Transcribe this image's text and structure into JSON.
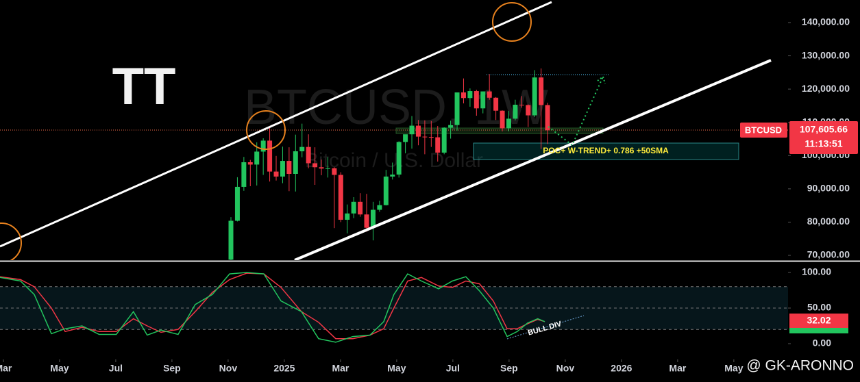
{
  "chart_data": [
    {
      "type": "candlestick",
      "logo": "TT",
      "watermark_title": "BTCUSD, 1W",
      "watermark_subtitle": "Bitcoin / U.S. Dollar",
      "symbol": "BTCUSD",
      "countdown": "11:13:51",
      "zone_label": "POC+ W-TREND+ 0.786 +50SMA",
      "credit": "@ GK-ARONNO",
      "last_price": {
        "value": 107605.66,
        "label": "107,605.66"
      },
      "up_color": "#22c55e",
      "down_color": "#f23645",
      "xlim": [
        1.88,
        29.93
      ],
      "xticks": [
        {
          "value": 2,
          "label": "Mar"
        },
        {
          "value": 4,
          "label": "May"
        },
        {
          "value": 6,
          "label": "Jul"
        },
        {
          "value": 8,
          "label": "Sep"
        },
        {
          "value": 10,
          "label": "Nov"
        },
        {
          "value": 12,
          "label": "2025"
        },
        {
          "value": 14,
          "label": "Mar"
        },
        {
          "value": 16,
          "label": "May"
        },
        {
          "value": 18,
          "label": "Jul"
        },
        {
          "value": 20,
          "label": "Sep"
        },
        {
          "value": 22,
          "label": "Nov"
        },
        {
          "value": 24,
          "label": "2026"
        },
        {
          "value": 26,
          "label": "Mar"
        },
        {
          "value": 28,
          "label": "May"
        }
      ],
      "ylim": [
        68560,
        146790
      ],
      "yticks": [
        {
          "value": 70000,
          "label": "70,000.00"
        },
        {
          "value": 80000,
          "label": "80,000.00"
        },
        {
          "value": 90000,
          "label": "90,000.00"
        },
        {
          "value": 100000,
          "label": "100,000.00"
        },
        {
          "value": 110000,
          "label": "110,000.00"
        },
        {
          "value": 120000,
          "label": "120,000.00"
        },
        {
          "value": 130000,
          "label": "130,000.00"
        },
        {
          "value": 140000,
          "label": "140,000.00"
        }
      ],
      "x": [
        10.1,
        10.33,
        10.56,
        10.79,
        11.02,
        11.25,
        11.48,
        11.71,
        11.94,
        12.17,
        12.4,
        12.63,
        12.86,
        13.09,
        13.32,
        13.55,
        13.78,
        14.01,
        14.24,
        14.47,
        14.7,
        14.93,
        15.16,
        15.39,
        15.62,
        15.85,
        16.08,
        16.31,
        16.54,
        16.77,
        17.0,
        17.23,
        17.46,
        17.69,
        17.92,
        18.15,
        18.38,
        18.61,
        18.84,
        19.07,
        19.3,
        19.53,
        19.76,
        19.99,
        20.22,
        20.45,
        20.68,
        20.91,
        21.14,
        21.37
      ],
      "open": [
        68700,
        80400,
        90600,
        98000,
        97300,
        101200,
        104500,
        95200,
        93700,
        98400,
        94500,
        101300,
        102600,
        97700,
        96500,
        96100,
        96200,
        94200,
        80700,
        82600,
        86100,
        82300,
        78300,
        83700,
        85100,
        93700,
        94300,
        104100,
        106400,
        109000,
        105700,
        105600,
        105500,
        100900,
        108400,
        109200,
        119000,
        117300,
        119400,
        114200,
        119300,
        117400,
        113500,
        108200,
        111100,
        115300,
        115200,
        112100,
        123500,
        115200
      ],
      "high": [
        81500,
        93500,
        99600,
        98700,
        104000,
        105200,
        108300,
        99900,
        102700,
        102500,
        106300,
        109600,
        106400,
        102500,
        98800,
        99500,
        96500,
        95000,
        85300,
        87500,
        88700,
        88500,
        86100,
        86400,
        95700,
        97900,
        104300,
        105800,
        111900,
        110700,
        110600,
        110400,
        108900,
        108500,
        110500,
        119000,
        123200,
        120200,
        119800,
        119300,
        124500,
        117600,
        113600,
        113400,
        116800,
        117900,
        115400,
        125700,
        126200,
        115900
      ],
      "low": [
        66800,
        80200,
        89400,
        90800,
        91000,
        94200,
        92200,
        92500,
        91700,
        89300,
        89200,
        99500,
        96200,
        91200,
        94100,
        93400,
        78200,
        80000,
        76600,
        81200,
        81600,
        77100,
        74500,
        83100,
        85000,
        92800,
        93400,
        100700,
        102100,
        103100,
        100400,
        102600,
        98200,
        100400,
        105100,
        107500,
        115700,
        114700,
        112000,
        112700,
        116800,
        110700,
        107300,
        107300,
        110600,
        114400,
        108600,
        111600,
        102000,
        103500
      ],
      "close": [
        80400,
        90600,
        98000,
        97300,
        101200,
        104500,
        95200,
        93700,
        98400,
        94500,
        101300,
        102600,
        97700,
        96500,
        96100,
        96200,
        94200,
        80700,
        82600,
        86100,
        82300,
        78300,
        83700,
        85100,
        93700,
        94300,
        104100,
        106400,
        109000,
        105700,
        105600,
        105500,
        100900,
        108400,
        109200,
        119000,
        117300,
        119400,
        114200,
        119300,
        117400,
        113500,
        108200,
        111100,
        115300,
        115200,
        112100,
        123500,
        115200,
        107605.66
      ]
    },
    {
      "type": "line",
      "annotation": "BULL DIV",
      "last_value": 32.02,
      "ylim": [
        -22.1,
        114.4
      ],
      "yticks": [
        {
          "value": 100,
          "label": "100.00"
        },
        {
          "value": 50,
          "label": "50.00"
        },
        {
          "value": 0,
          "label": "0.00"
        }
      ],
      "hlines": [
        80,
        50,
        20
      ],
      "x": [
        1.88,
        2.61,
        3.1,
        3.71,
        4.2,
        4.8,
        5.41,
        6.02,
        6.63,
        7.12,
        7.61,
        8.22,
        8.83,
        9.44,
        10.05,
        10.66,
        11.27,
        11.88,
        12.61,
        13.22,
        13.83,
        14.44,
        15.05,
        15.54,
        15.9,
        16.39,
        16.88,
        17.49,
        17.98,
        18.46,
        18.95,
        19.44,
        19.93,
        20.29,
        20.66,
        21.02,
        21.27
      ],
      "series": [
        {
          "color": "#22c55e",
          "values": [
            93,
            88,
            69,
            14,
            21,
            25,
            13,
            13,
            45,
            12,
            19,
            13,
            55,
            69,
            98,
            100,
            98,
            60,
            45,
            7,
            2,
            10,
            12,
            31,
            69,
            98,
            88,
            77,
            88,
            94,
            74,
            50,
            10,
            17,
            29,
            35,
            31
          ]
        },
        {
          "color": "#f23645",
          "values": [
            94,
            90,
            80,
            50,
            17,
            23,
            17,
            17,
            35,
            25,
            16,
            20,
            45,
            72,
            90,
            99,
            98,
            79,
            45,
            30,
            7,
            7,
            12,
            21,
            50,
            88,
            93,
            81,
            79,
            88,
            84,
            60,
            21,
            21,
            28,
            34,
            31
          ]
        }
      ]
    }
  ]
}
